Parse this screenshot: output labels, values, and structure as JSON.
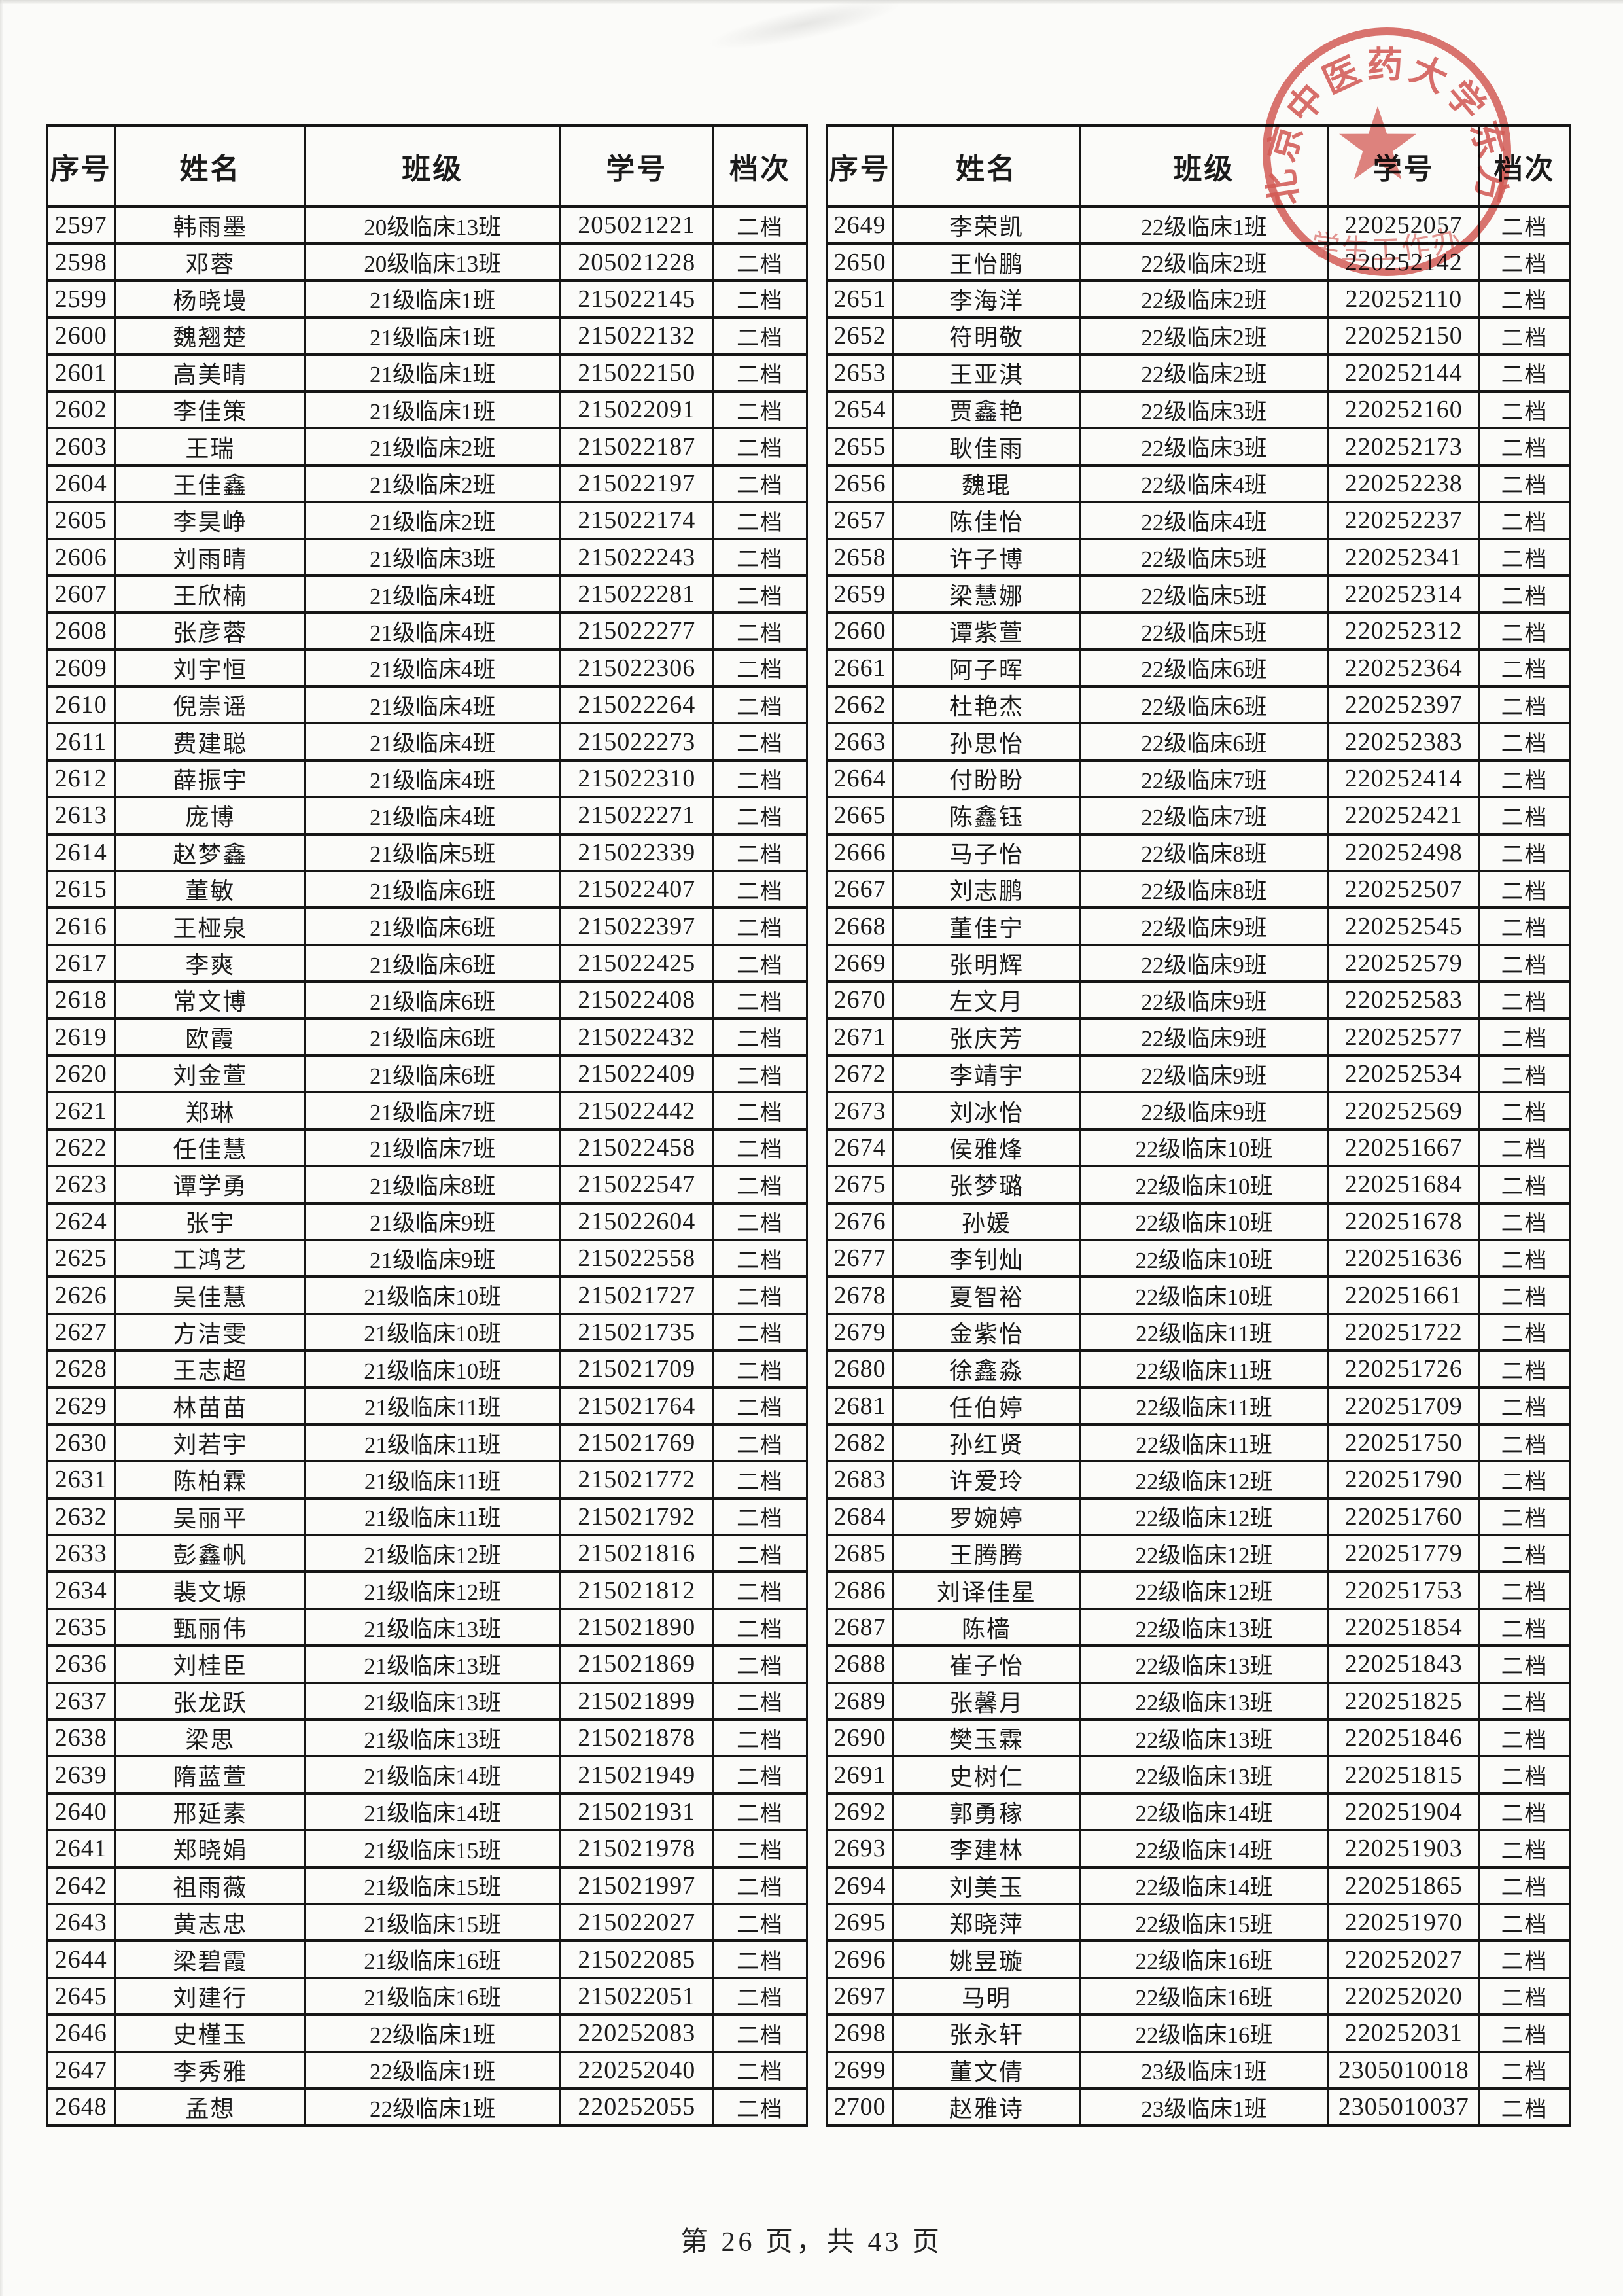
{
  "document": {
    "columns": [
      "序号",
      "姓名",
      "班级",
      "学号",
      "档次"
    ],
    "footer": "第 26 页，共 43 页",
    "stamp": {
      "arc_text": "北京中医药大学东方",
      "inner_text": "学生工作办",
      "color": "#d0453f"
    },
    "left_table": {
      "rows": [
        [
          "2597",
          "韩雨墨",
          "20级临床13班",
          "205021221",
          "二档"
        ],
        [
          "2598",
          "邓蓉",
          "20级临床13班",
          "205021228",
          "二档"
        ],
        [
          "2599",
          "杨晓墁",
          "21级临床1班",
          "215022145",
          "二档"
        ],
        [
          "2600",
          "魏翘楚",
          "21级临床1班",
          "215022132",
          "二档"
        ],
        [
          "2601",
          "高美晴",
          "21级临床1班",
          "215022150",
          "二档"
        ],
        [
          "2602",
          "李佳策",
          "21级临床1班",
          "215022091",
          "二档"
        ],
        [
          "2603",
          "王瑞",
          "21级临床2班",
          "215022187",
          "二档"
        ],
        [
          "2604",
          "王佳鑫",
          "21级临床2班",
          "215022197",
          "二档"
        ],
        [
          "2605",
          "李昊峥",
          "21级临床2班",
          "215022174",
          "二档"
        ],
        [
          "2606",
          "刘雨晴",
          "21级临床3班",
          "215022243",
          "二档"
        ],
        [
          "2607",
          "王欣楠",
          "21级临床4班",
          "215022281",
          "二档"
        ],
        [
          "2608",
          "张彦蓉",
          "21级临床4班",
          "215022277",
          "二档"
        ],
        [
          "2609",
          "刘宇恒",
          "21级临床4班",
          "215022306",
          "二档"
        ],
        [
          "2610",
          "倪崇谣",
          "21级临床4班",
          "215022264",
          "二档"
        ],
        [
          "2611",
          "费建聪",
          "21级临床4班",
          "215022273",
          "二档"
        ],
        [
          "2612",
          "薛振宇",
          "21级临床4班",
          "215022310",
          "二档"
        ],
        [
          "2613",
          "庞博",
          "21级临床4班",
          "215022271",
          "二档"
        ],
        [
          "2614",
          "赵梦鑫",
          "21级临床5班",
          "215022339",
          "二档"
        ],
        [
          "2615",
          "董敏",
          "21级临床6班",
          "215022407",
          "二档"
        ],
        [
          "2616",
          "王桠泉",
          "21级临床6班",
          "215022397",
          "二档"
        ],
        [
          "2617",
          "李爽",
          "21级临床6班",
          "215022425",
          "二档"
        ],
        [
          "2618",
          "常文博",
          "21级临床6班",
          "215022408",
          "二档"
        ],
        [
          "2619",
          "欧霞",
          "21级临床6班",
          "215022432",
          "二档"
        ],
        [
          "2620",
          "刘金萱",
          "21级临床6班",
          "215022409",
          "二档"
        ],
        [
          "2621",
          "郑琳",
          "21级临床7班",
          "215022442",
          "二档"
        ],
        [
          "2622",
          "任佳慧",
          "21级临床7班",
          "215022458",
          "二档"
        ],
        [
          "2623",
          "谭学勇",
          "21级临床8班",
          "215022547",
          "二档"
        ],
        [
          "2624",
          "张宇",
          "21级临床9班",
          "215022604",
          "二档"
        ],
        [
          "2625",
          "工鸿艺",
          "21级临床9班",
          "215022558",
          "二档"
        ],
        [
          "2626",
          "吴佳慧",
          "21级临床10班",
          "215021727",
          "二档"
        ],
        [
          "2627",
          "方洁雯",
          "21级临床10班",
          "215021735",
          "二档"
        ],
        [
          "2628",
          "王志超",
          "21级临床10班",
          "215021709",
          "二档"
        ],
        [
          "2629",
          "林苗苗",
          "21级临床11班",
          "215021764",
          "二档"
        ],
        [
          "2630",
          "刘若宇",
          "21级临床11班",
          "215021769",
          "二档"
        ],
        [
          "2631",
          "陈柏霖",
          "21级临床11班",
          "215021772",
          "二档"
        ],
        [
          "2632",
          "吴丽平",
          "21级临床11班",
          "215021792",
          "二档"
        ],
        [
          "2633",
          "彭鑫帆",
          "21级临床12班",
          "215021816",
          "二档"
        ],
        [
          "2634",
          "裴文塬",
          "21级临床12班",
          "215021812",
          "二档"
        ],
        [
          "2635",
          "甄丽伟",
          "21级临床13班",
          "215021890",
          "二档"
        ],
        [
          "2636",
          "刘桂臣",
          "21级临床13班",
          "215021869",
          "二档"
        ],
        [
          "2637",
          "张龙跃",
          "21级临床13班",
          "215021899",
          "二档"
        ],
        [
          "2638",
          "梁思",
          "21级临床13班",
          "215021878",
          "二档"
        ],
        [
          "2639",
          "隋蓝萱",
          "21级临床14班",
          "215021949",
          "二档"
        ],
        [
          "2640",
          "邢延素",
          "21级临床14班",
          "215021931",
          "二档"
        ],
        [
          "2641",
          "郑晓娟",
          "21级临床15班",
          "215021978",
          "二档"
        ],
        [
          "2642",
          "祖雨薇",
          "21级临床15班",
          "215021997",
          "二档"
        ],
        [
          "2643",
          "黄志忠",
          "21级临床15班",
          "215022027",
          "二档"
        ],
        [
          "2644",
          "梁碧霞",
          "21级临床16班",
          "215022085",
          "二档"
        ],
        [
          "2645",
          "刘建行",
          "21级临床16班",
          "215022051",
          "二档"
        ],
        [
          "2646",
          "史槿玉",
          "22级临床1班",
          "220252083",
          "二档"
        ],
        [
          "2647",
          "李秀雅",
          "22级临床1班",
          "220252040",
          "二档"
        ],
        [
          "2648",
          "孟想",
          "22级临床1班",
          "220252055",
          "二档"
        ]
      ]
    },
    "right_table": {
      "rows": [
        [
          "2649",
          "李荣凯",
          "22级临床1班",
          "220252057",
          "二档"
        ],
        [
          "2650",
          "王怡鹏",
          "22级临床2班",
          "220252142",
          "二档"
        ],
        [
          "2651",
          "李海洋",
          "22级临床2班",
          "220252110",
          "二档"
        ],
        [
          "2652",
          "符明敬",
          "22级临床2班",
          "220252150",
          "二档"
        ],
        [
          "2653",
          "王亚淇",
          "22级临床2班",
          "220252144",
          "二档"
        ],
        [
          "2654",
          "贾鑫艳",
          "22级临床3班",
          "220252160",
          "二档"
        ],
        [
          "2655",
          "耿佳雨",
          "22级临床3班",
          "220252173",
          "二档"
        ],
        [
          "2656",
          "魏琨",
          "22级临床4班",
          "220252238",
          "二档"
        ],
        [
          "2657",
          "陈佳怡",
          "22级临床4班",
          "220252237",
          "二档"
        ],
        [
          "2658",
          "许子博",
          "22级临床5班",
          "220252341",
          "二档"
        ],
        [
          "2659",
          "梁慧娜",
          "22级临床5班",
          "220252314",
          "二档"
        ],
        [
          "2660",
          "谭紫萱",
          "22级临床5班",
          "220252312",
          "二档"
        ],
        [
          "2661",
          "阿子晖",
          "22级临床6班",
          "220252364",
          "二档"
        ],
        [
          "2662",
          "杜艳杰",
          "22级临床6班",
          "220252397",
          "二档"
        ],
        [
          "2663",
          "孙思怡",
          "22级临床6班",
          "220252383",
          "二档"
        ],
        [
          "2664",
          "付盼盼",
          "22级临床7班",
          "220252414",
          "二档"
        ],
        [
          "2665",
          "陈鑫钰",
          "22级临床7班",
          "220252421",
          "二档"
        ],
        [
          "2666",
          "马子怡",
          "22级临床8班",
          "220252498",
          "二档"
        ],
        [
          "2667",
          "刘志鹏",
          "22级临床8班",
          "220252507",
          "二档"
        ],
        [
          "2668",
          "董佳宁",
          "22级临床9班",
          "220252545",
          "二档"
        ],
        [
          "2669",
          "张明辉",
          "22级临床9班",
          "220252579",
          "二档"
        ],
        [
          "2670",
          "左文月",
          "22级临床9班",
          "220252583",
          "二档"
        ],
        [
          "2671",
          "张庆芳",
          "22级临床9班",
          "220252577",
          "二档"
        ],
        [
          "2672",
          "李靖宇",
          "22级临床9班",
          "220252534",
          "二档"
        ],
        [
          "2673",
          "刘冰怡",
          "22级临床9班",
          "220252569",
          "二档"
        ],
        [
          "2674",
          "侯雅烽",
          "22级临床10班",
          "220251667",
          "二档"
        ],
        [
          "2675",
          "张梦璐",
          "22级临床10班",
          "220251684",
          "二档"
        ],
        [
          "2676",
          "孙媛",
          "22级临床10班",
          "220251678",
          "二档"
        ],
        [
          "2677",
          "李钊灿",
          "22级临床10班",
          "220251636",
          "二档"
        ],
        [
          "2678",
          "夏智裕",
          "22级临床10班",
          "220251661",
          "二档"
        ],
        [
          "2679",
          "金紫怡",
          "22级临床11班",
          "220251722",
          "二档"
        ],
        [
          "2680",
          "徐鑫淼",
          "22级临床11班",
          "220251726",
          "二档"
        ],
        [
          "2681",
          "任伯婷",
          "22级临床11班",
          "220251709",
          "二档"
        ],
        [
          "2682",
          "孙红贤",
          "22级临床11班",
          "220251750",
          "二档"
        ],
        [
          "2683",
          "许爱玲",
          "22级临床12班",
          "220251790",
          "二档"
        ],
        [
          "2684",
          "罗婉婷",
          "22级临床12班",
          "220251760",
          "二档"
        ],
        [
          "2685",
          "王腾腾",
          "22级临床12班",
          "220251779",
          "二档"
        ],
        [
          "2686",
          "刘译佳星",
          "22级临床12班",
          "220251753",
          "二档"
        ],
        [
          "2687",
          "陈樯",
          "22级临床13班",
          "220251854",
          "二档"
        ],
        [
          "2688",
          "崔子怡",
          "22级临床13班",
          "220251843",
          "二档"
        ],
        [
          "2689",
          "张馨月",
          "22级临床13班",
          "220251825",
          "二档"
        ],
        [
          "2690",
          "樊玉霖",
          "22级临床13班",
          "220251846",
          "二档"
        ],
        [
          "2691",
          "史树仁",
          "22级临床13班",
          "220251815",
          "二档"
        ],
        [
          "2692",
          "郭勇稼",
          "22级临床14班",
          "220251904",
          "二档"
        ],
        [
          "2693",
          "李建林",
          "22级临床14班",
          "220251903",
          "二档"
        ],
        [
          "2694",
          "刘美玉",
          "22级临床14班",
          "220251865",
          "二档"
        ],
        [
          "2695",
          "郑晓萍",
          "22级临床15班",
          "220251970",
          "二档"
        ],
        [
          "2696",
          "姚昱璇",
          "22级临床16班",
          "220252027",
          "二档"
        ],
        [
          "2697",
          "马明",
          "22级临床16班",
          "220252020",
          "二档"
        ],
        [
          "2698",
          "张永轩",
          "22级临床16班",
          "220252031",
          "二档"
        ],
        [
          "2699",
          "董文倩",
          "23级临床1班",
          "2305010018",
          "二档"
        ],
        [
          "2700",
          "赵雅诗",
          "23级临床1班",
          "2305010037",
          "二档"
        ]
      ]
    }
  }
}
